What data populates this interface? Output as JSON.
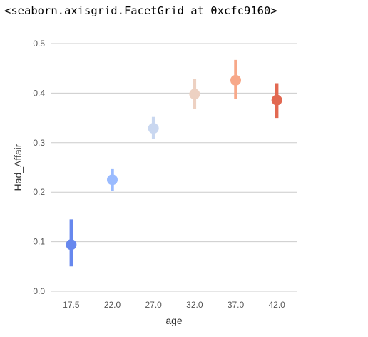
{
  "output": {
    "repr_text": "<seaborn.axisgrid.FacetGrid at 0xcfc9160>"
  },
  "chart_data": {
    "type": "point",
    "xlabel": "age",
    "ylabel": "Had_Affair",
    "categories": [
      "17.5",
      "22.0",
      "27.0",
      "32.0",
      "37.0",
      "42.0"
    ],
    "values": [
      0.094,
      0.225,
      0.329,
      0.398,
      0.426,
      0.386
    ],
    "ci_low": [
      0.05,
      0.203,
      0.307,
      0.368,
      0.389,
      0.35
    ],
    "ci_high": [
      0.145,
      0.248,
      0.352,
      0.429,
      0.467,
      0.42
    ],
    "colors": [
      "#6788ee",
      "#9abbff",
      "#c9d7f0",
      "#edd1c2",
      "#f7a889",
      "#e26952"
    ],
    "ylim": [
      0.0,
      0.5
    ],
    "yticks": [
      "0.0",
      "0.1",
      "0.2",
      "0.3",
      "0.4",
      "0.5"
    ],
    "grid": true
  }
}
